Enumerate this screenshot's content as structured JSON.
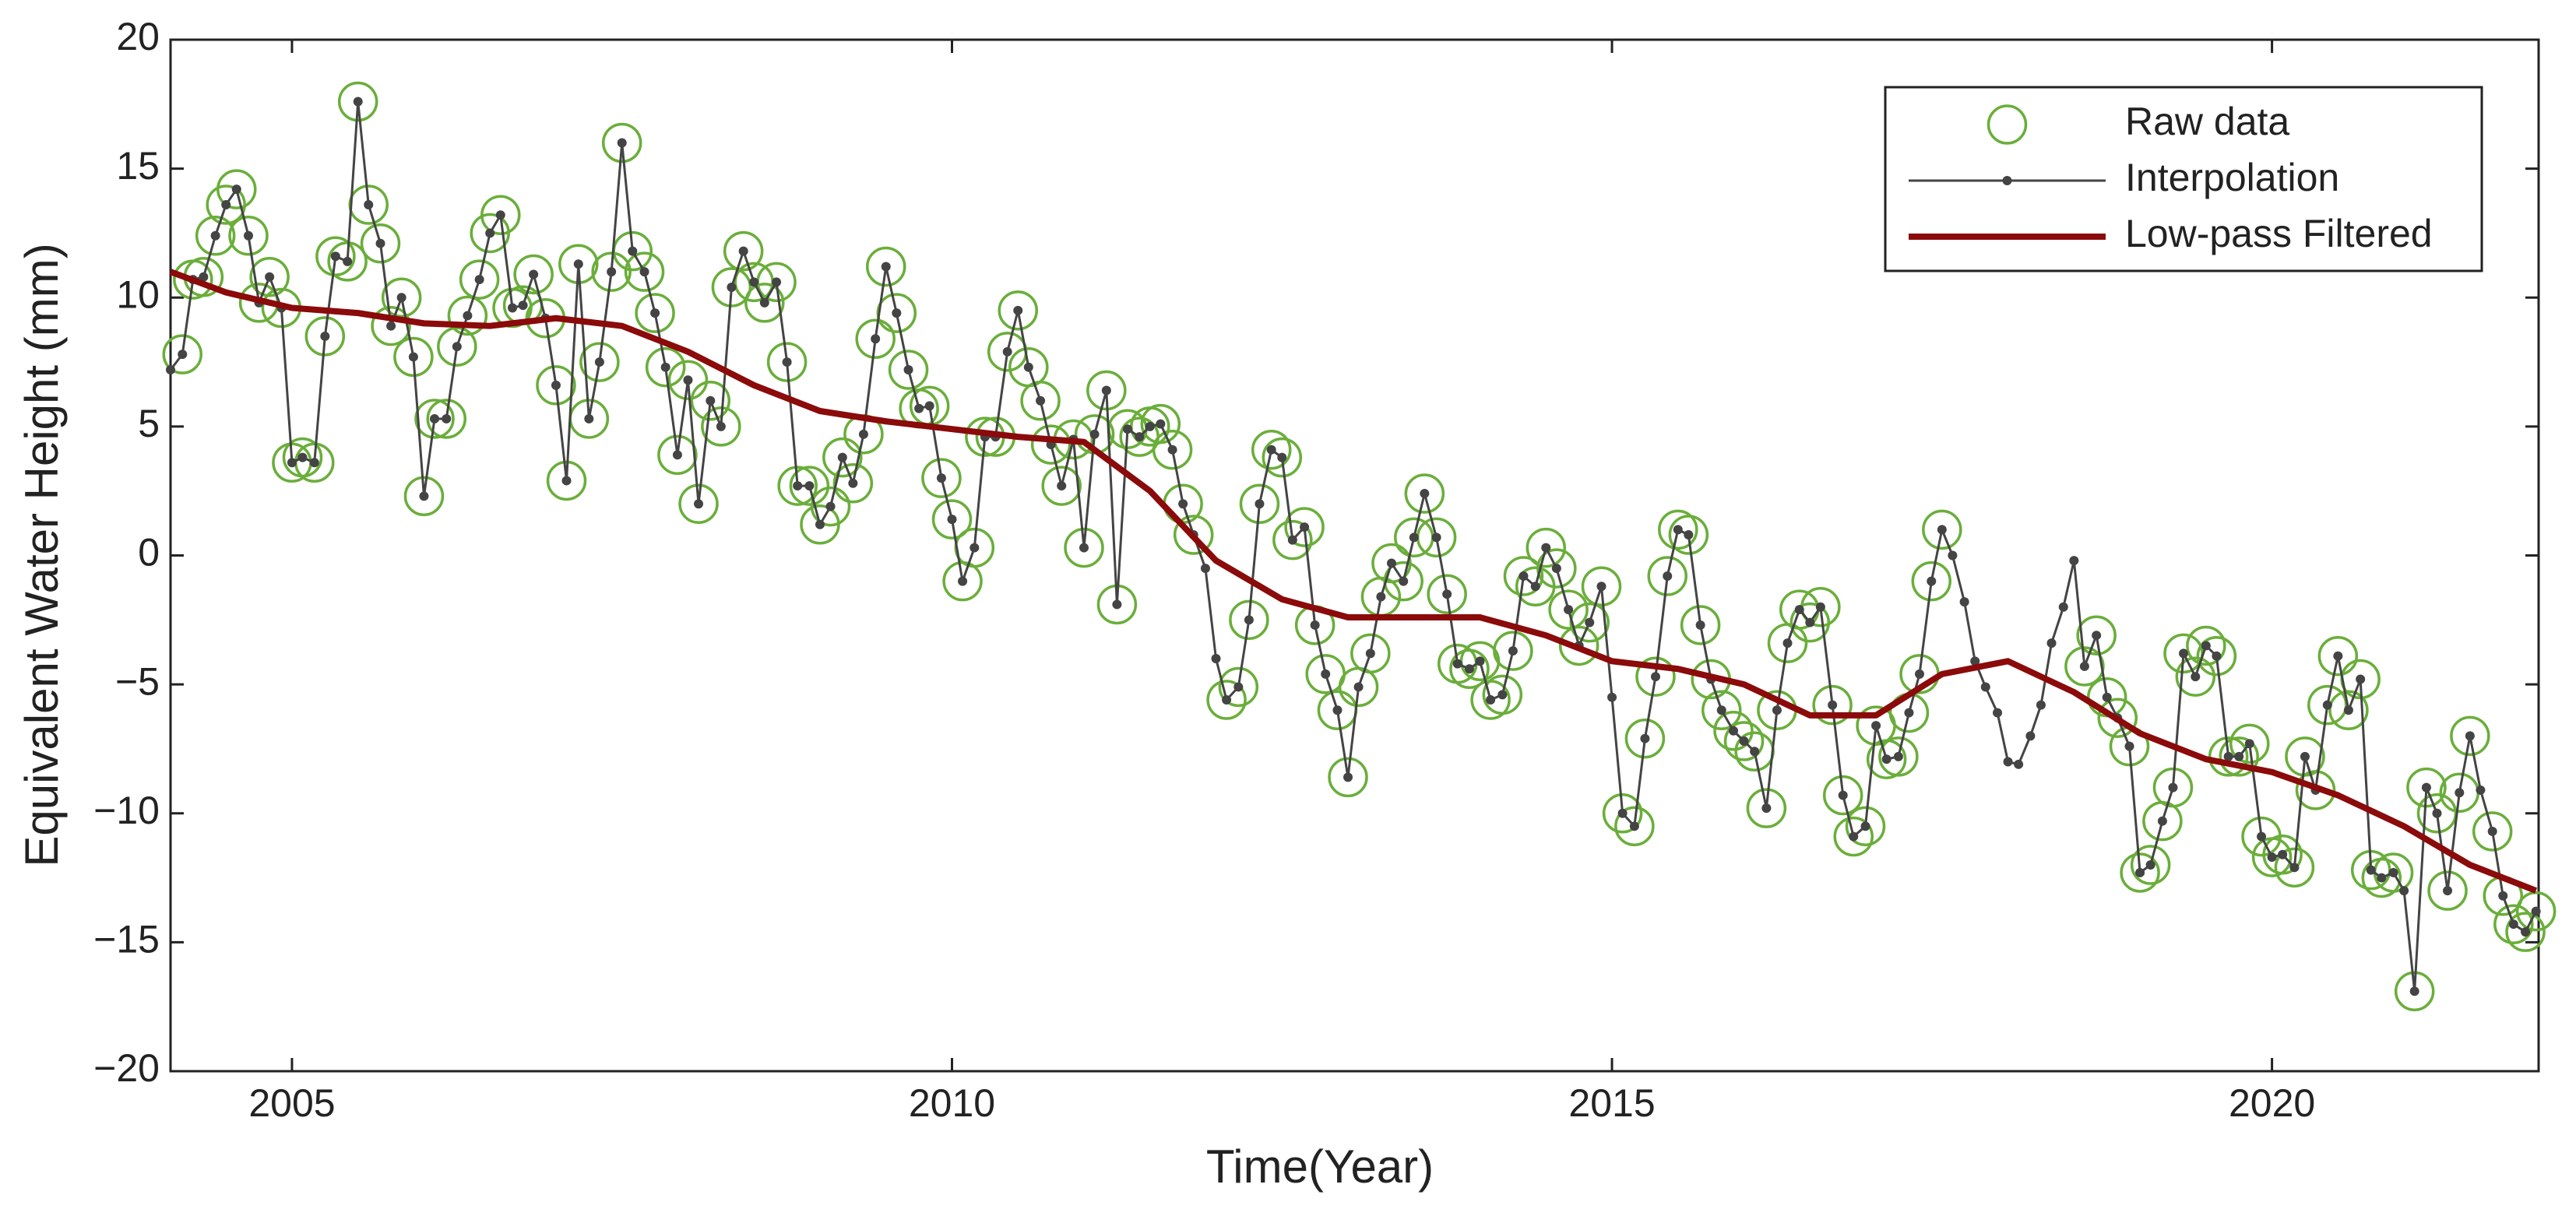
{
  "chart_data": {
    "type": "line",
    "xlabel": "Time(Year)",
    "ylabel": "Equivalent Water Height (mm)",
    "xlim": [
      2004.08,
      2022.02
    ],
    "ylim": [
      -20,
      20
    ],
    "xticks": [
      2005,
      2010,
      2015,
      2020
    ],
    "yticks": [
      {
        "value": -20,
        "label": "−20"
      },
      {
        "value": -15,
        "label": "−15"
      },
      {
        "value": -10,
        "label": "−10"
      },
      {
        "value": -5,
        "label": "−5"
      },
      0,
      5,
      10,
      15,
      20
    ],
    "grid": false,
    "legend": "upper right",
    "series": [
      {
        "name": "Raw data",
        "color": "#6aae3a",
        "mode": "markers",
        "x": [
          2004.17,
          2004.25,
          2004.33,
          2004.42,
          2004.5,
          2004.58,
          2004.67,
          2004.75,
          2004.83,
          2004.92,
          2005,
          2005.08,
          2005.17,
          2005.25,
          2005.33,
          2005.42,
          2005.5,
          2005.58,
          2005.67,
          2005.75,
          2005.83,
          2005.92,
          2006,
          2006.08,
          2006.17,
          2006.25,
          2006.33,
          2006.42,
          2006.5,
          2006.58,
          2006.67,
          2006.75,
          2006.83,
          2006.92,
          2007,
          2007.08,
          2007.17,
          2007.25,
          2007.33,
          2007.42,
          2007.5,
          2007.58,
          2007.67,
          2007.75,
          2007.83,
          2007.92,
          2008,
          2008.08,
          2008.17,
          2008.25,
          2008.33,
          2008.42,
          2008.5,
          2008.58,
          2008.67,
          2008.75,
          2008.83,
          2008.92,
          2009,
          2009.08,
          2009.17,
          2009.25,
          2009.33,
          2009.42,
          2009.5,
          2009.58,
          2009.67,
          2009.75,
          2009.83,
          2009.92,
          2010,
          2010.08,
          2010.17,
          2010.25,
          2010.33,
          2010.42,
          2010.5,
          2010.58,
          2010.67,
          2010.75,
          2010.83,
          2010.92,
          2011,
          2011.08,
          2011.17,
          2011.25,
          2011.33,
          2011.42,
          2011.5,
          2011.58,
          2011.67,
          2011.75,
          2011.83,
          2012.08,
          2012.17,
          2012.25,
          2012.33,
          2012.42,
          2012.5,
          2012.58,
          2012.67,
          2012.75,
          2012.83,
          2012.92,
          2013,
          2013.08,
          2013.17,
          2013.25,
          2013.33,
          2013.42,
          2013.5,
          2013.58,
          2013.67,
          2013.75,
          2013.83,
          2013.92,
          2014,
          2014.08,
          2014.17,
          2014.25,
          2014.33,
          2014.42,
          2014.5,
          2014.58,
          2014.67,
          2014.75,
          2014.83,
          2014.92,
          2015.08,
          2015.17,
          2015.25,
          2015.33,
          2015.42,
          2015.5,
          2015.58,
          2015.67,
          2015.75,
          2015.83,
          2015.92,
          2016,
          2016.08,
          2016.17,
          2016.25,
          2016.33,
          2016.42,
          2016.5,
          2016.58,
          2016.67,
          2016.75,
          2016.83,
          2016.92,
          2017,
          2017.08,
          2017.17,
          2017.25,
          2017.33,
          2017.42,
          2017.5,
          2018.58,
          2018.67,
          2018.75,
          2018.83,
          2018.92,
          2019,
          2019.08,
          2019.17,
          2019.25,
          2019.33,
          2019.42,
          2019.5,
          2019.58,
          2019.67,
          2019.75,
          2019.83,
          2019.92,
          2020,
          2020.08,
          2020.17,
          2020.25,
          2020.33,
          2020.42,
          2020.5,
          2020.58,
          2020.67,
          2020.75,
          2020.83,
          2020.92,
          2021.08,
          2021.17,
          2021.25,
          2021.33,
          2021.42,
          2021.5,
          2021.67,
          2021.75,
          2021.83,
          2021.92,
          2022
        ],
        "values": [
          7.8,
          10.7,
          10.8,
          12.4,
          13.6,
          14.2,
          12.4,
          9.8,
          10.8,
          9.6,
          3.6,
          3.8,
          3.6,
          8.5,
          11.6,
          11.4,
          17.6,
          13.6,
          12.1,
          8.9,
          10.0,
          7.7,
          2.3,
          5.3,
          5.3,
          8.1,
          9.3,
          10.7,
          12.5,
          13.2,
          9.6,
          9.7,
          10.9,
          9.2,
          6.6,
          2.9,
          11.3,
          5.3,
          7.5,
          11.0,
          16.0,
          11.8,
          11.0,
          9.4,
          7.3,
          3.9,
          6.8,
          2.0,
          6.0,
          5.0,
          10.4,
          11.8,
          10.6,
          9.8,
          10.6,
          7.5,
          2.7,
          2.7,
          1.2,
          1.9,
          3.8,
          2.8,
          4.7,
          8.4,
          11.2,
          9.4,
          7.2,
          5.7,
          5.8,
          3.0,
          1.4,
          -1.0,
          0.3,
          4.6,
          4.6,
          7.9,
          9.5,
          7.3,
          6.0,
          4.3,
          2.7,
          4.5,
          0.3,
          4.7,
          6.4,
          -1.9,
          4.9,
          4.6,
          5.0,
          5.1,
          4.1,
          2.0,
          0.8,
          -5.6,
          -5.1,
          -2.5,
          2.0,
          4.1,
          3.8,
          0.6,
          1.1,
          -2.7,
          -4.6,
          -6.0,
          -8.6,
          -5.1,
          -3.8,
          -1.6,
          -0.3,
          -1.0,
          0.7,
          2.4,
          0.7,
          -1.5,
          -4.2,
          -4.4,
          -4.1,
          -5.6,
          -5.4,
          -3.7,
          -0.8,
          -1.2,
          0.3,
          -0.5,
          -2.1,
          -3.5,
          -2.6,
          -1.2,
          -10.0,
          -10.5,
          -7.1,
          -4.7,
          -0.8,
          1.0,
          0.8,
          -2.7,
          -4.8,
          -6.0,
          -6.8,
          -7.2,
          -7.6,
          -9.8,
          -6.0,
          -3.4,
          -2.1,
          -2.6,
          -2.0,
          -5.8,
          -9.3,
          -10.9,
          -10.5,
          -6.6,
          -7.9,
          -7.8,
          -6.1,
          -4.6,
          -1.0,
          1.0,
          -4.3,
          -3.1,
          -5.5,
          -6.3,
          -7.4,
          -12.3,
          -12.0,
          -10.3,
          -9.0,
          -3.8,
          -4.7,
          -3.5,
          -3.9,
          -7.8,
          -7.8,
          -7.3,
          -10.9,
          -11.7,
          -11.6,
          -12.1,
          -7.8,
          -9.1,
          -5.8,
          -3.9,
          -6.0,
          -4.8,
          -12.2,
          -12.5,
          -12.3,
          -16.9,
          -9.0,
          -10.0,
          -13.0,
          -9.2,
          -7.0,
          -10.7,
          -13.2,
          -14.3,
          -14.6,
          -13.8
        ]
      },
      {
        "name": "Interpolation",
        "color": "#444444",
        "mode": "lines+markers",
        "x": [
          2004.08,
          2004.17,
          2004.25,
          2004.33,
          2004.42,
          2004.5,
          2004.58,
          2004.67,
          2004.75,
          2004.83,
          2004.92,
          2005,
          2005.08,
          2005.17,
          2005.25,
          2005.33,
          2005.42,
          2005.5,
          2005.58,
          2005.67,
          2005.75,
          2005.83,
          2005.92,
          2006,
          2006.08,
          2006.17,
          2006.25,
          2006.33,
          2006.42,
          2006.5,
          2006.58,
          2006.67,
          2006.75,
          2006.83,
          2006.92,
          2007,
          2007.08,
          2007.17,
          2007.25,
          2007.33,
          2007.42,
          2007.5,
          2007.58,
          2007.67,
          2007.75,
          2007.83,
          2007.92,
          2008,
          2008.08,
          2008.17,
          2008.25,
          2008.33,
          2008.42,
          2008.5,
          2008.58,
          2008.67,
          2008.75,
          2008.83,
          2008.92,
          2009,
          2009.08,
          2009.17,
          2009.25,
          2009.33,
          2009.42,
          2009.5,
          2009.58,
          2009.67,
          2009.75,
          2009.83,
          2009.92,
          2010,
          2010.08,
          2010.17,
          2010.25,
          2010.33,
          2010.42,
          2010.5,
          2010.58,
          2010.67,
          2010.75,
          2010.83,
          2010.92,
          2011,
          2011.08,
          2011.17,
          2011.25,
          2011.33,
          2011.42,
          2011.5,
          2011.58,
          2011.67,
          2011.75,
          2011.83,
          2011.92,
          2012,
          2012.08,
          2012.17,
          2012.25,
          2012.33,
          2012.42,
          2012.5,
          2012.58,
          2012.67,
          2012.75,
          2012.83,
          2012.92,
          2013,
          2013.08,
          2013.17,
          2013.25,
          2013.33,
          2013.42,
          2013.5,
          2013.58,
          2013.67,
          2013.75,
          2013.83,
          2013.92,
          2014,
          2014.08,
          2014.17,
          2014.25,
          2014.33,
          2014.42,
          2014.5,
          2014.58,
          2014.67,
          2014.75,
          2014.83,
          2014.92,
          2015,
          2015.08,
          2015.17,
          2015.25,
          2015.33,
          2015.42,
          2015.5,
          2015.58,
          2015.67,
          2015.75,
          2015.83,
          2015.92,
          2016,
          2016.08,
          2016.17,
          2016.25,
          2016.33,
          2016.42,
          2016.5,
          2016.58,
          2016.67,
          2016.75,
          2016.83,
          2016.92,
          2017,
          2017.08,
          2017.17,
          2017.25,
          2017.33,
          2017.42,
          2017.5,
          2017.58,
          2017.67,
          2017.75,
          2017.83,
          2017.92,
          2018,
          2018.08,
          2018.17,
          2018.25,
          2018.33,
          2018.42,
          2018.5,
          2018.58,
          2018.67,
          2018.75,
          2018.83,
          2018.92,
          2019,
          2019.08,
          2019.17,
          2019.25,
          2019.33,
          2019.42,
          2019.5,
          2019.58,
          2019.67,
          2019.75,
          2019.83,
          2019.92,
          2020,
          2020.08,
          2020.17,
          2020.25,
          2020.33,
          2020.42,
          2020.5,
          2020.58,
          2020.67,
          2020.75,
          2020.83,
          2020.92,
          2021,
          2021.08,
          2021.17,
          2021.25,
          2021.33,
          2021.42,
          2021.5,
          2021.58,
          2021.67,
          2021.75,
          2021.83,
          2021.92,
          2022
        ],
        "values": [
          7.2,
          7.8,
          10.7,
          10.8,
          12.4,
          13.6,
          14.2,
          12.4,
          9.8,
          10.8,
          9.6,
          3.6,
          3.8,
          3.6,
          8.5,
          11.6,
          11.4,
          17.6,
          13.6,
          12.1,
          8.9,
          10.0,
          7.7,
          2.3,
          5.3,
          5.3,
          8.1,
          9.3,
          10.7,
          12.5,
          13.2,
          9.6,
          9.7,
          10.9,
          9.2,
          6.6,
          2.9,
          11.3,
          5.3,
          7.5,
          11.0,
          16.0,
          11.8,
          11.0,
          9.4,
          7.3,
          3.9,
          6.8,
          2.0,
          6.0,
          5.0,
          10.4,
          11.8,
          10.6,
          9.8,
          10.6,
          7.5,
          2.7,
          2.7,
          1.2,
          1.9,
          3.8,
          2.8,
          4.7,
          8.4,
          11.2,
          9.4,
          7.2,
          5.7,
          5.8,
          3.0,
          1.4,
          -1.0,
          0.3,
          4.6,
          4.6,
          7.9,
          9.5,
          7.3,
          6.0,
          4.3,
          2.7,
          4.5,
          0.3,
          4.7,
          6.4,
          -1.9,
          4.9,
          4.6,
          5.0,
          5.1,
          4.1,
          2.0,
          0.8,
          -0.5,
          -4.0,
          -5.6,
          -5.1,
          -2.5,
          2.0,
          4.1,
          3.8,
          0.6,
          1.1,
          -2.7,
          -4.6,
          -6.0,
          -8.6,
          -5.1,
          -3.8,
          -1.6,
          -0.3,
          -1.0,
          0.7,
          2.4,
          0.7,
          -1.5,
          -4.2,
          -4.4,
          -4.1,
          -5.6,
          -5.4,
          -3.7,
          -0.8,
          -1.2,
          0.3,
          -0.5,
          -2.1,
          -3.5,
          -2.6,
          -1.2,
          -5.5,
          -10.0,
          -10.5,
          -7.1,
          -4.7,
          -0.8,
          1.0,
          0.8,
          -2.7,
          -4.8,
          -6.0,
          -6.8,
          -7.2,
          -7.6,
          -9.8,
          -6.0,
          -3.4,
          -2.1,
          -2.6,
          -2.0,
          -5.8,
          -9.3,
          -10.9,
          -10.5,
          -6.6,
          -7.9,
          -7.8,
          -6.1,
          -4.6,
          -1.0,
          1.0,
          0.0,
          -1.8,
          -4.1,
          -5.1,
          -6.1,
          -8.0,
          -8.1,
          -7.0,
          -5.8,
          -3.4,
          -2.0,
          -0.2,
          -4.3,
          -3.1,
          -5.5,
          -6.3,
          -7.4,
          -12.3,
          -12.0,
          -10.3,
          -9.0,
          -3.8,
          -4.7,
          -3.5,
          -3.9,
          -7.8,
          -7.8,
          -7.3,
          -10.9,
          -11.7,
          -11.6,
          -12.1,
          -7.8,
          -9.1,
          -5.8,
          -3.9,
          -6.0,
          -4.8,
          -12.2,
          -12.5,
          -12.3,
          -13.0,
          -16.9,
          -9.0,
          -10.0,
          -13.0,
          -9.2,
          -7.0,
          -9.1,
          -10.7,
          -13.2,
          -14.3,
          -14.6,
          -13.8
        ]
      },
      {
        "name": "Low-pass Filtered",
        "color": "#8b0a0a",
        "mode": "lines",
        "x": [
          2004.08,
          2004.5,
          2005,
          2005.5,
          2006,
          2006.5,
          2007,
          2007.5,
          2008,
          2008.5,
          2009,
          2009.5,
          2010,
          2010.5,
          2011,
          2011.5,
          2012,
          2012.5,
          2013,
          2013.5,
          2014,
          2014.5,
          2015,
          2015.5,
          2016,
          2016.5,
          2017,
          2017.5,
          2018,
          2018.5,
          2019,
          2019.5,
          2020,
          2020.5,
          2021,
          2021.5,
          2022
        ],
        "values": [
          11.0,
          10.2,
          9.6,
          9.4,
          9.0,
          8.9,
          9.2,
          8.9,
          7.9,
          6.6,
          5.6,
          5.2,
          4.9,
          4.6,
          4.4,
          2.5,
          -0.2,
          -1.7,
          -2.4,
          -2.4,
          -2.4,
          -3.1,
          -4.1,
          -4.4,
          -5.0,
          -6.2,
          -6.2,
          -4.6,
          -4.1,
          -5.3,
          -6.9,
          -7.9,
          -8.4,
          -9.3,
          -10.5,
          -12.0,
          -13.0
        ]
      }
    ]
  }
}
